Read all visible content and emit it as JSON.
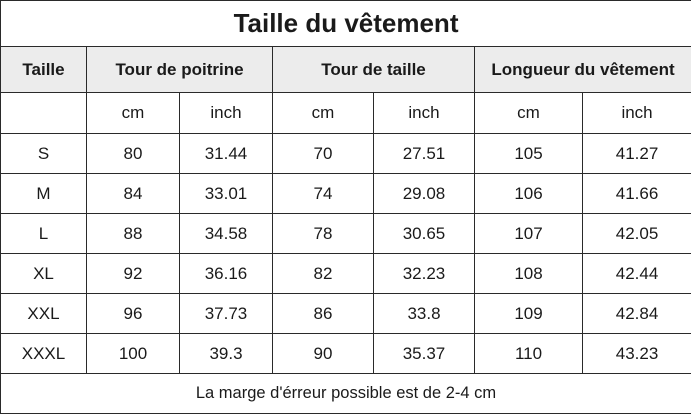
{
  "title": "Taille du vêtement",
  "header": {
    "size": "Taille",
    "chest": "Tour de poitrine",
    "waist": "Tour de taille",
    "length": "Longueur du vêtement"
  },
  "units": {
    "cm": "cm",
    "inch": "inch"
  },
  "rows": [
    {
      "size": "S",
      "chest_cm": "80",
      "chest_in": "31.44",
      "waist_cm": "70",
      "waist_in": "27.51",
      "length_cm": "105",
      "length_in": "41.27"
    },
    {
      "size": "M",
      "chest_cm": "84",
      "chest_in": "33.01",
      "waist_cm": "74",
      "waist_in": "29.08",
      "length_cm": "106",
      "length_in": "41.66"
    },
    {
      "size": "L",
      "chest_cm": "88",
      "chest_in": "34.58",
      "waist_cm": "78",
      "waist_in": "30.65",
      "length_cm": "107",
      "length_in": "42.05"
    },
    {
      "size": "XL",
      "chest_cm": "92",
      "chest_in": "36.16",
      "waist_cm": "82",
      "waist_in": "32.23",
      "length_cm": "108",
      "length_in": "42.44"
    },
    {
      "size": "XXL",
      "chest_cm": "96",
      "chest_in": "37.73",
      "waist_cm": "86",
      "waist_in": "33.8",
      "length_cm": "109",
      "length_in": "42.84"
    },
    {
      "size": "XXXL",
      "chest_cm": "100",
      "chest_in": "39.3",
      "waist_cm": "90",
      "waist_in": "35.37",
      "length_cm": "110",
      "length_in": "43.23"
    }
  ],
  "footer": "La marge d'érreur possible est de 2-4 cm",
  "colors": {
    "header_background": "#ececec",
    "border": "#2a2a2a"
  }
}
